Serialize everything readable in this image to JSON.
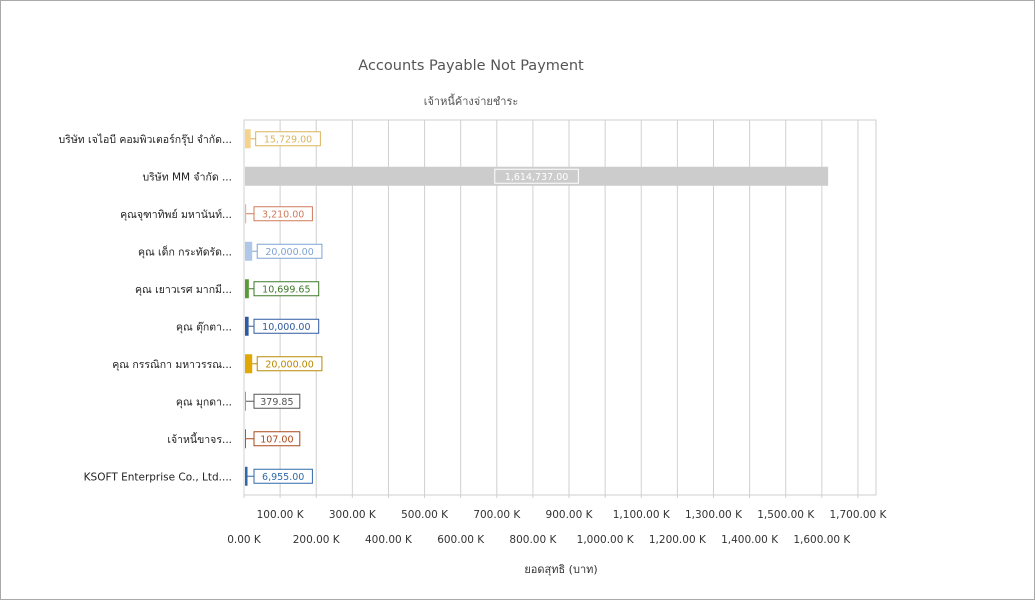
{
  "chart_data": {
    "type": "bar",
    "orientation": "horizontal",
    "title": "Accounts Payable Not Payment",
    "subtitle": "เจ้าหนี้ค้างจ่ายชำระ",
    "xlabel": "ยอดสุทธิ (บาท)",
    "ylabel": "",
    "xlim": [
      0,
      1750000
    ],
    "grid": true,
    "categories": [
      "บริษัท เจไอบี คอมพิวเตอร์กรุ๊ป จำกัด...",
      "บริษัท MM จำกัด ...",
      "คุณจุฑาทิพย์ มหานันท์...",
      "คุณ เด็ก กระทัดรัด...",
      "คุณ เยาวเรศ มากมี...",
      "คุณ ตุ๊กตา...",
      "คุณ กรรณิกา มหาวรรณ...",
      "คุณ มุกดา...",
      "เจ้าหนี้ขาจร...",
      "KSOFT Enterprise Co., Ltd...."
    ],
    "values": [
      15729.0,
      1614737.0,
      3210.0,
      20000.0,
      10699.65,
      10000.0,
      20000.0,
      379.85,
      107.0,
      6955.0
    ],
    "value_labels": [
      "15,729.00",
      "1,614,737.00",
      "3,210.00",
      "20,000.00",
      "10,699.65",
      "10,000.00",
      "20,000.00",
      "379.85",
      "107.00",
      "6,955.00"
    ],
    "colors": [
      "#f5d38a",
      "#cccccc",
      "#e8b39a",
      "#b0c8e8",
      "#5a9a3a",
      "#2f5aa0",
      "#e0a800",
      "#999999",
      "#c05020",
      "#2f6aa8"
    ],
    "label_colors": [
      "#d9b45c",
      "#ffffff",
      "#d07a5a",
      "#7fa3d4",
      "#3c7a28",
      "#2f5aa0",
      "#b88a00",
      "#555555",
      "#a84818",
      "#2f6aa8"
    ],
    "x_ticks": [
      {
        "value": 0,
        "label": "0.00 K"
      },
      {
        "value": 100000,
        "label": "100.00 K"
      },
      {
        "value": 200000,
        "label": "200.00 K"
      },
      {
        "value": 300000,
        "label": "300.00 K"
      },
      {
        "value": 400000,
        "label": "400.00 K"
      },
      {
        "value": 500000,
        "label": "500.00 K"
      },
      {
        "value": 600000,
        "label": "600.00 K"
      },
      {
        "value": 700000,
        "label": "700.00 K"
      },
      {
        "value": 800000,
        "label": "800.00 K"
      },
      {
        "value": 900000,
        "label": "900.00 K"
      },
      {
        "value": 1000000,
        "label": "1,000.00 K"
      },
      {
        "value": 1100000,
        "label": "1,100.00 K"
      },
      {
        "value": 1200000,
        "label": "1,200.00 K"
      },
      {
        "value": 1300000,
        "label": "1,300.00 K"
      },
      {
        "value": 1400000,
        "label": "1,400.00 K"
      },
      {
        "value": 1500000,
        "label": "1,500.00 K"
      },
      {
        "value": 1600000,
        "label": "1,600.00 K"
      },
      {
        "value": 1700000,
        "label": "1,700.00 K"
      }
    ]
  }
}
